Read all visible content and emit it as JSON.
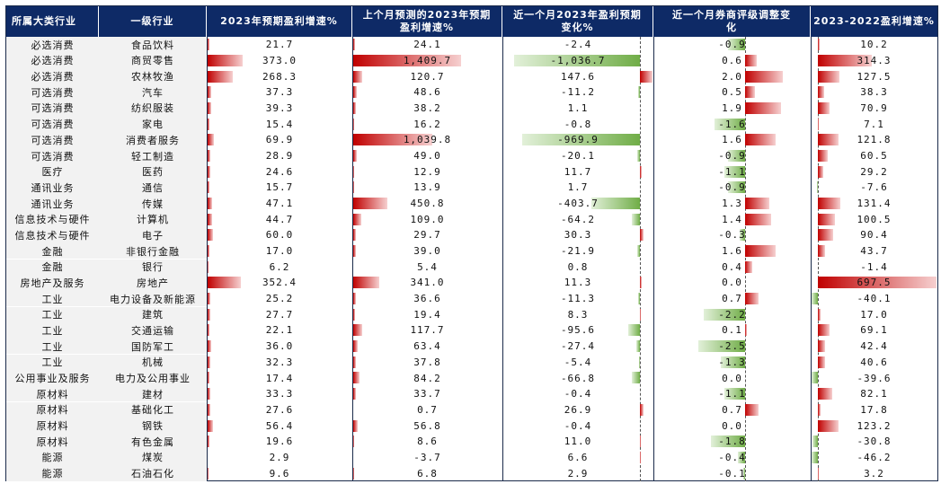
{
  "headers": {
    "category": "所属大类行业",
    "industry": "一级行业",
    "c1": "2023年预期盈利增速%",
    "c2_line1": "上个月预测的2023年预期",
    "c2_line2": "盈利增速%",
    "c3_line1": "近一个月2023年盈利预期",
    "c3_line2": "变化%",
    "c4_line1": "近一个月券商评级调整变",
    "c4_line2": "化",
    "c5": "2023-2022盈利增速%"
  },
  "colors": {
    "header_bg": "#0e2a66",
    "positive_bar": "#c00000",
    "negative_bar": "#70ad47",
    "label_bg": "#f2f2f2"
  },
  "chart_data": {
    "type": "table",
    "columns": [
      "所属大类行业",
      "一级行业",
      "2023年预期盈利增速%",
      "上个月预测的2023年预期盈利增速%",
      "近一个月2023年盈利预期变化%",
      "近一个月券商评级调整变化",
      "2023-2022盈利增速%"
    ],
    "rows": [
      {
        "cat": "必选消费",
        "ind": "食品饮料",
        "v": [
          21.7,
          24.1,
          -2.4,
          -0.9,
          10.2
        ]
      },
      {
        "cat": "必选消费",
        "ind": "商贸零售",
        "v": [
          373.0,
          1409.7,
          -1036.7,
          0.6,
          314.3
        ]
      },
      {
        "cat": "必选消费",
        "ind": "农林牧渔",
        "v": [
          268.3,
          120.7,
          147.6,
          2.0,
          127.5
        ]
      },
      {
        "cat": "可选消费",
        "ind": "汽车",
        "v": [
          37.3,
          48.6,
          -11.2,
          0.5,
          38.3
        ]
      },
      {
        "cat": "可选消费",
        "ind": "纺织服装",
        "v": [
          39.3,
          38.2,
          1.1,
          1.9,
          70.9
        ]
      },
      {
        "cat": "可选消费",
        "ind": "家电",
        "v": [
          15.4,
          16.2,
          -0.8,
          -1.6,
          7.1
        ]
      },
      {
        "cat": "可选消费",
        "ind": "消费者服务",
        "v": [
          69.9,
          1039.8,
          -969.9,
          1.6,
          121.8
        ]
      },
      {
        "cat": "可选消费",
        "ind": "轻工制造",
        "v": [
          28.9,
          49.0,
          -20.1,
          -0.9,
          60.5
        ]
      },
      {
        "cat": "医疗",
        "ind": "医药",
        "v": [
          24.6,
          12.9,
          11.7,
          -1.1,
          29.2
        ]
      },
      {
        "cat": "通讯业务",
        "ind": "通信",
        "v": [
          15.7,
          13.9,
          1.7,
          -0.9,
          -7.6
        ]
      },
      {
        "cat": "通讯业务",
        "ind": "传媒",
        "v": [
          47.1,
          450.8,
          -403.7,
          1.3,
          131.4
        ]
      },
      {
        "cat": "信息技术与硬件",
        "ind": "计算机",
        "v": [
          44.7,
          109.0,
          -64.2,
          1.4,
          100.5
        ]
      },
      {
        "cat": "信息技术与硬件",
        "ind": "电子",
        "v": [
          60.0,
          29.7,
          30.3,
          -0.3,
          90.4
        ]
      },
      {
        "cat": "金融",
        "ind": "非银行金融",
        "v": [
          17.0,
          39.0,
          -21.9,
          1.6,
          43.7
        ]
      },
      {
        "cat": "金融",
        "ind": "银行",
        "v": [
          6.2,
          5.4,
          0.8,
          0.4,
          -1.4
        ]
      },
      {
        "cat": "房地产及服务",
        "ind": "房地产",
        "v": [
          352.4,
          341.0,
          11.3,
          0.0,
          697.5
        ]
      },
      {
        "cat": "工业",
        "ind": "电力设备及新能源",
        "v": [
          25.2,
          36.6,
          -11.3,
          0.7,
          -40.1
        ]
      },
      {
        "cat": "工业",
        "ind": "建筑",
        "v": [
          27.7,
          19.4,
          8.3,
          -2.2,
          17.0
        ]
      },
      {
        "cat": "工业",
        "ind": "交通运输",
        "v": [
          22.1,
          117.7,
          -95.6,
          0.1,
          69.1
        ]
      },
      {
        "cat": "工业",
        "ind": "国防军工",
        "v": [
          36.0,
          63.4,
          -27.4,
          -2.5,
          42.4
        ]
      },
      {
        "cat": "工业",
        "ind": "机械",
        "v": [
          32.3,
          37.8,
          -5.4,
          -1.3,
          40.6
        ]
      },
      {
        "cat": "公用事业及服务",
        "ind": "电力及公用事业",
        "v": [
          17.4,
          84.2,
          -66.8,
          0.0,
          -39.6
        ]
      },
      {
        "cat": "原材料",
        "ind": "建材",
        "v": [
          33.3,
          33.7,
          -0.4,
          -1.1,
          82.1
        ]
      },
      {
        "cat": "原材料",
        "ind": "基础化工",
        "v": [
          27.6,
          0.7,
          26.9,
          0.7,
          17.8
        ]
      },
      {
        "cat": "原材料",
        "ind": "钢铁",
        "v": [
          56.4,
          56.8,
          -0.4,
          0.0,
          123.2
        ]
      },
      {
        "cat": "原材料",
        "ind": "有色金属",
        "v": [
          19.6,
          8.6,
          11.0,
          -1.8,
          -30.8
        ]
      },
      {
        "cat": "能源",
        "ind": "煤炭",
        "v": [
          2.9,
          -3.7,
          6.6,
          -0.4,
          -46.2
        ]
      },
      {
        "cat": "能源",
        "ind": "石油石化",
        "v": [
          9.6,
          6.8,
          2.9,
          -0.1,
          3.2
        ]
      }
    ]
  }
}
